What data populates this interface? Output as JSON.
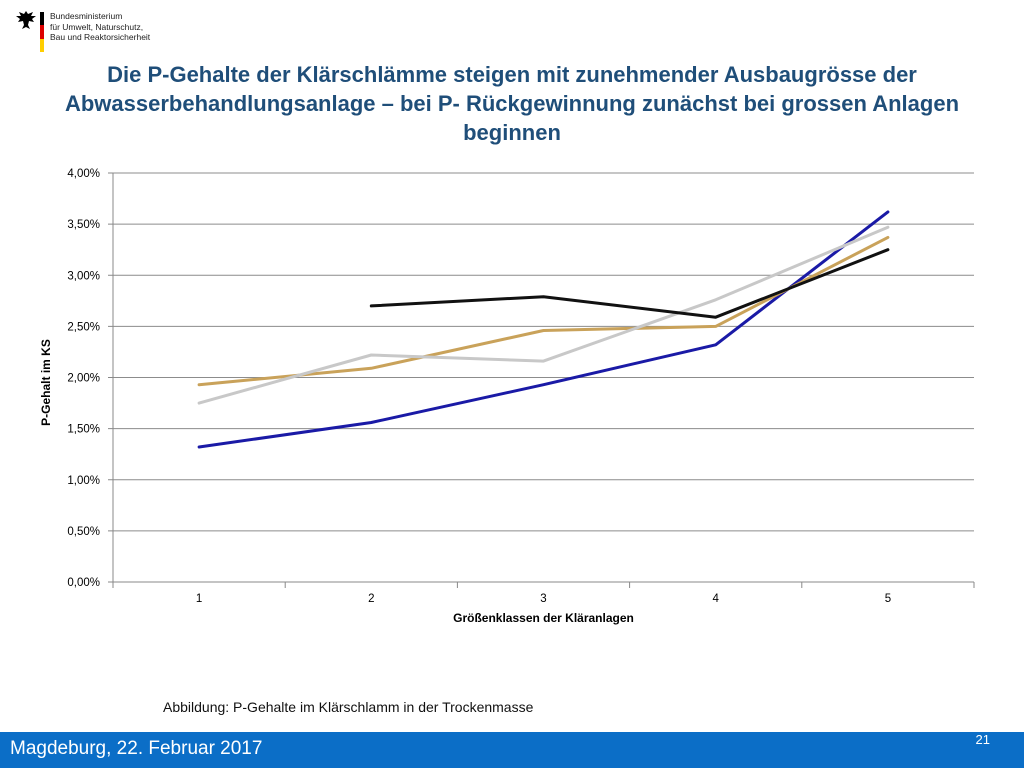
{
  "header": {
    "ministry_lines": "Bundesministerium\nfür Umwelt, Naturschutz,\nBau und Reaktorsicherheit"
  },
  "slide": {
    "title": "Die P-Gehalte der Klärschlämme steigen mit zunehmender Ausbaugrösse der Abwasserbehandlungsanlage – bei P- Rückgewinnung  zunächst bei grossen Anlagen beginnen",
    "caption": "Abbildung: P-Gehalte im Klärschlamm in der Trockenmasse",
    "footer_place": "Magdeburg, 22. Februar 2017",
    "page_number": "21"
  },
  "colors": {
    "title": "#1f4e79",
    "footer_bg": "#0b6ec7",
    "flag_black": "#000000",
    "flag_red": "#dd0000",
    "flag_gold": "#ffce00"
  },
  "chart_data": {
    "type": "line",
    "xlabel": "Größenklassen der Kläranlagen",
    "ylabel": "P-Gehalt im KS",
    "categories": [
      "1",
      "2",
      "3",
      "4",
      "5"
    ],
    "ylim": [
      0,
      4.0
    ],
    "yticks": [
      {
        "v": 0.0,
        "label": "0,00%"
      },
      {
        "v": 0.5,
        "label": "0,50%"
      },
      {
        "v": 1.0,
        "label": "1,00%"
      },
      {
        "v": 1.5,
        "label": "1,50%"
      },
      {
        "v": 2.0,
        "label": "2,00%"
      },
      {
        "v": 2.5,
        "label": "2,50%"
      },
      {
        "v": 3.0,
        "label": "3,00%"
      },
      {
        "v": 3.5,
        "label": "3,50%"
      },
      {
        "v": 4.0,
        "label": "4,00%"
      }
    ],
    "grid": true,
    "legend": "none",
    "series": [
      {
        "color": "#1a1aa6",
        "values": [
          1.32,
          1.56,
          1.93,
          2.32,
          3.62
        ]
      },
      {
        "color": "#c9a25a",
        "values": [
          1.93,
          2.09,
          2.46,
          2.5,
          3.37
        ]
      },
      {
        "color": "#c8c8c8",
        "values": [
          1.75,
          2.22,
          2.16,
          2.76,
          3.47
        ]
      },
      {
        "color": "#111111",
        "values": [
          null,
          2.7,
          2.79,
          2.59,
          3.25
        ]
      }
    ]
  }
}
